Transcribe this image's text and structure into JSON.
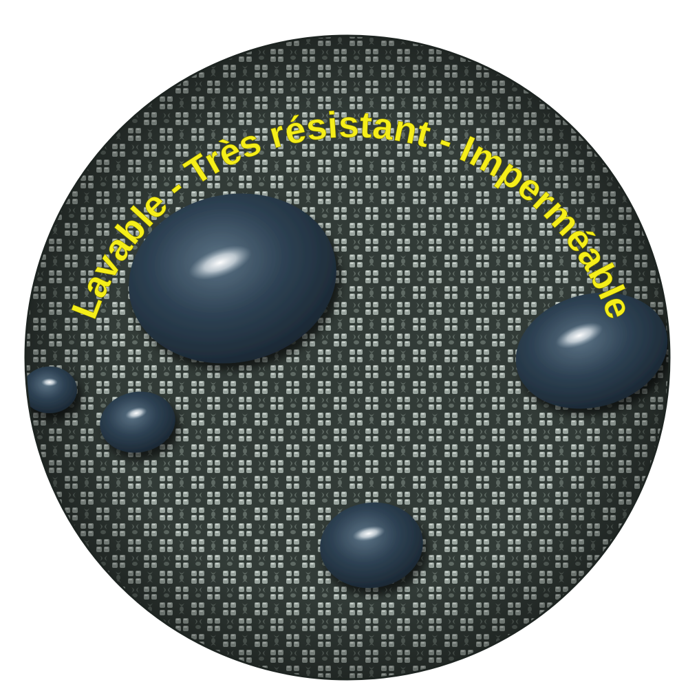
{
  "badge": {
    "slogan": "Lavable - Très résistant - Imperméable",
    "text_color": "#f5ee1a",
    "fabric_base_color": "#323b37",
    "fabric_highlight_color": "#c9d2cc",
    "drop_color": "#28394a"
  },
  "water_drops": [
    {
      "name": "water-drop-large"
    },
    {
      "name": "water-drop-right"
    },
    {
      "name": "water-drop-left-small"
    },
    {
      "name": "water-drop-left-edge"
    },
    {
      "name": "water-drop-bottom"
    }
  ]
}
